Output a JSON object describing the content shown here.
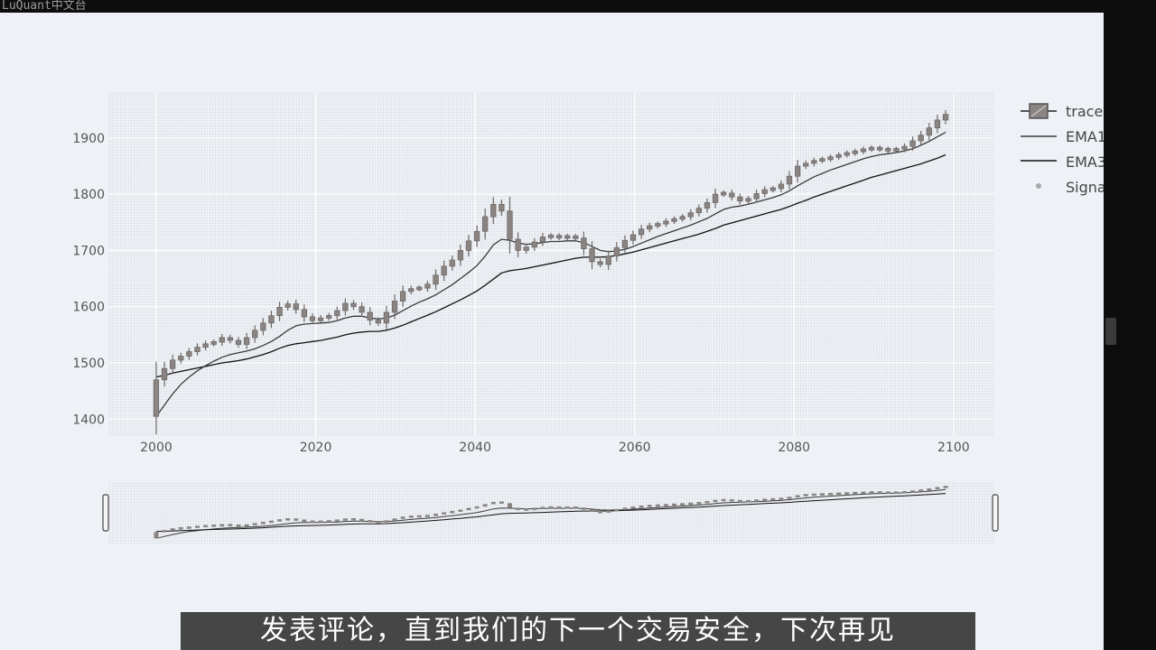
{
  "watermark": "LuQuant中文台",
  "subtitle": "发表评论，直到我们的下一个交易安全，下次再见",
  "colors": {
    "background": "#eef1f6",
    "plot_bg": "#e6e9ee",
    "candle": "#8a8482",
    "ema_fast": "#3a3a3a",
    "ema_slow": "#111111"
  },
  "chart_data": {
    "type": "candlestick",
    "x_ticks": [
      "2000",
      "2020",
      "2040",
      "2060",
      "2080",
      "2100"
    ],
    "y_ticks": [
      "1400",
      "1500",
      "1600",
      "1700",
      "1800",
      "1900"
    ],
    "xlim": [
      1994,
      2105
    ],
    "ylim": [
      1370,
      1980
    ],
    "grid": true,
    "legend_position": "right",
    "range_slider": true,
    "legend": [
      "trace",
      "EMA1",
      "EMA3",
      "Signa"
    ],
    "series": [
      {
        "kind": "candlestick",
        "close": [
          1470,
          1490,
          1505,
          1512,
          1520,
          1528,
          1534,
          1537,
          1545,
          1540,
          1533,
          1545,
          1558,
          1571,
          1584,
          1599,
          1605,
          1595,
          1582,
          1575,
          1580,
          1584,
          1593,
          1606,
          1600,
          1590,
          1576,
          1571,
          1590,
          1610,
          1627,
          1632,
          1633,
          1640,
          1656,
          1672,
          1683,
          1700,
          1717,
          1734,
          1760,
          1782,
          1770,
          1720,
          1700,
          1706,
          1715,
          1724,
          1726,
          1723,
          1725,
          1722,
          1703,
          1680,
          1675,
          1690,
          1705,
          1718,
          1728,
          1738,
          1744,
          1747,
          1752,
          1756,
          1760,
          1767,
          1775,
          1785,
          1800,
          1802,
          1795,
          1788,
          1792,
          1801,
          1808,
          1810,
          1818,
          1832,
          1850,
          1855,
          1860,
          1862,
          1866,
          1870,
          1873,
          1876,
          1880,
          1882,
          1880,
          1878,
          1880,
          1885,
          1895,
          1905,
          1918,
          1932,
          1942
        ]
      },
      {
        "kind": "line",
        "name": "EMA1",
        "values": [
          1405,
          1425,
          1445,
          1462,
          1475,
          1486,
          1495,
          1503,
          1510,
          1515,
          1518,
          1521,
          1525,
          1531,
          1538,
          1547,
          1558,
          1566,
          1569,
          1570,
          1571,
          1572,
          1575,
          1580,
          1583,
          1583,
          1580,
          1578,
          1580,
          1585,
          1593,
          1601,
          1608,
          1614,
          1621,
          1630,
          1639,
          1650,
          1661,
          1673,
          1690,
          1710,
          1720,
          1718,
          1713,
          1711,
          1712,
          1714,
          1716,
          1716,
          1717,
          1717,
          1714,
          1707,
          1700,
          1698,
          1699,
          1702,
          1707,
          1713,
          1719,
          1725,
          1730,
          1735,
          1740,
          1745,
          1751,
          1757,
          1765,
          1773,
          1777,
          1779,
          1782,
          1786,
          1790,
          1794,
          1799,
          1806,
          1815,
          1823,
          1831,
          1837,
          1843,
          1848,
          1853,
          1858,
          1863,
          1867,
          1870,
          1872,
          1874,
          1877,
          1881,
          1887,
          1894,
          1902,
          1910
        ]
      },
      {
        "kind": "line",
        "name": "EMA3",
        "values": [
          1475,
          1478,
          1482,
          1485,
          1488,
          1491,
          1494,
          1497,
          1500,
          1502,
          1504,
          1507,
          1511,
          1515,
          1520,
          1526,
          1531,
          1534,
          1536,
          1538,
          1540,
          1543,
          1546,
          1550,
          1553,
          1555,
          1556,
          1556,
          1558,
          1562,
          1567,
          1573,
          1579,
          1585,
          1591,
          1598,
          1605,
          1612,
          1620,
          1628,
          1638,
          1649,
          1660,
          1664,
          1666,
          1668,
          1671,
          1674,
          1677,
          1680,
          1683,
          1686,
          1688,
          1688,
          1688,
          1689,
          1691,
          1694,
          1697,
          1701,
          1705,
          1709,
          1713,
          1717,
          1721,
          1725,
          1729,
          1734,
          1739,
          1745,
          1749,
          1753,
          1757,
          1761,
          1765,
          1769,
          1773,
          1778,
          1784,
          1789,
          1795,
          1800,
          1805,
          1810,
          1815,
          1820,
          1825,
          1830,
          1834,
          1838,
          1842,
          1846,
          1850,
          1854,
          1859,
          1864,
          1870
        ]
      }
    ]
  }
}
